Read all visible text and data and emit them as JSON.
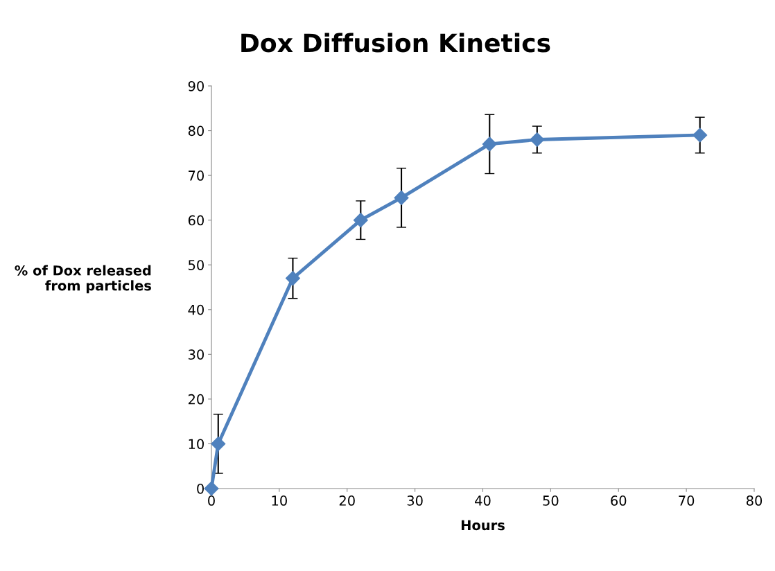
{
  "chart_data": {
    "type": "line",
    "title": "Dox Diffusion Kinetics",
    "xlabel": "Hours",
    "ylabel": "% of Dox released\nfrom particles",
    "x": [
      0,
      1,
      12,
      22,
      28,
      41,
      48,
      72
    ],
    "series": [
      {
        "color": "#4f81bd",
        "values": [
          0,
          10,
          47,
          60,
          65,
          77,
          78,
          79
        ],
        "errors": [
          null,
          6.6,
          4.5,
          4.3,
          6.6,
          6.6,
          3,
          4
        ]
      }
    ],
    "xlim": [
      0,
      80
    ],
    "xticks": [
      0,
      10,
      20,
      30,
      40,
      50,
      60,
      70,
      80
    ],
    "ylim": [
      0,
      90
    ],
    "yticks": [
      0,
      10,
      20,
      30,
      40,
      50,
      60,
      70,
      80,
      90
    ],
    "grid": false,
    "legend": false,
    "marker": "diamond",
    "line_style": "solid"
  }
}
